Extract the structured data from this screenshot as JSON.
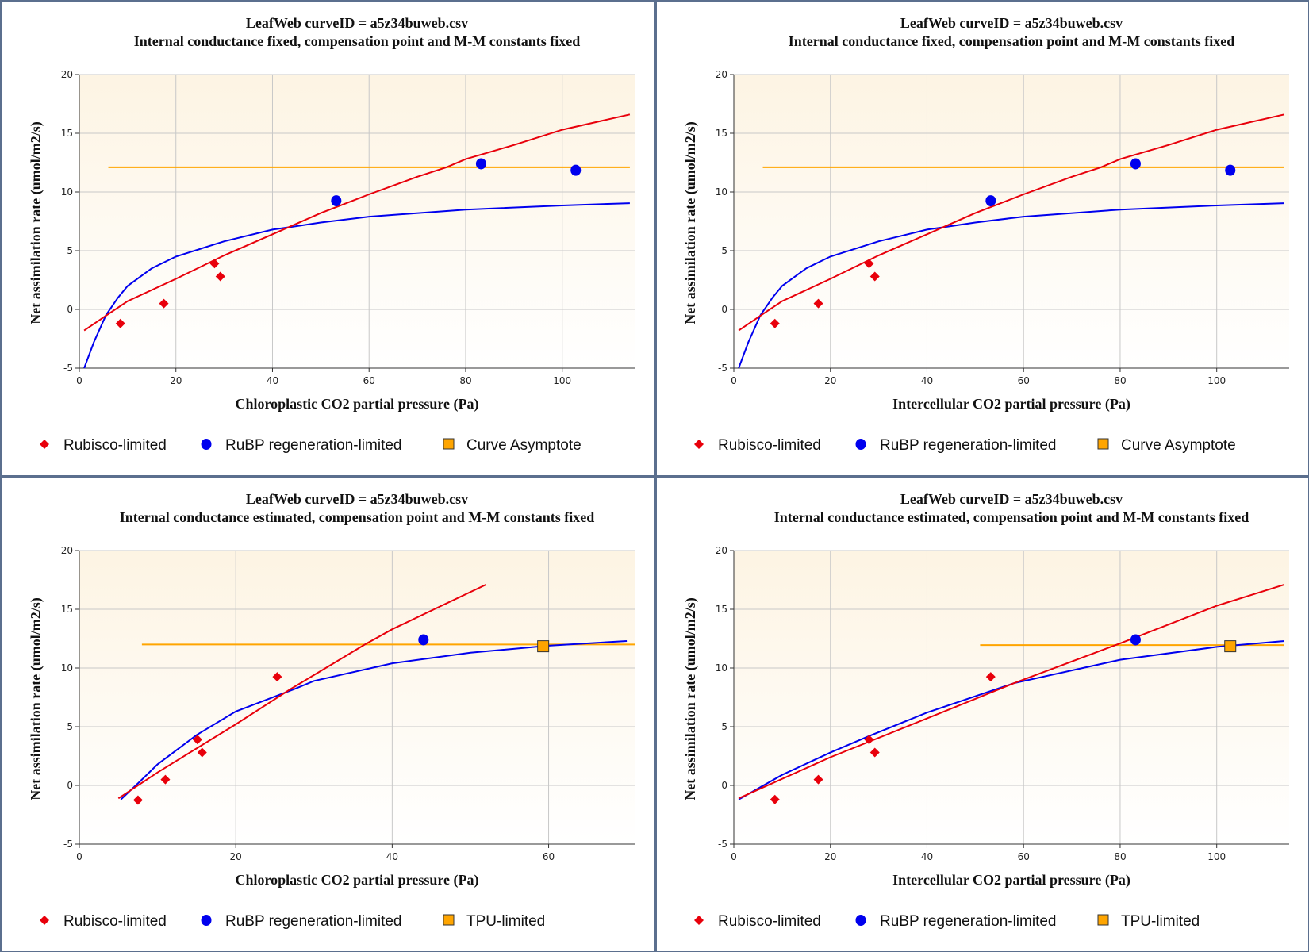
{
  "colors": {
    "rubisco": "#e8000b",
    "rubp": "#0000ee",
    "asymptote": "#ffa500",
    "grid": "#c8c8c8",
    "bg_top": "#fdf4e3",
    "frame": "#5b6f8e"
  },
  "chart_data": [
    {
      "type": "scatter",
      "title": "LeafWeb curveID = a5z34buweb.csv",
      "subtitle": "Internal conductance fixed, compensation point and M-M constants fixed",
      "xlabel": "Chloroplastic CO2 partial pressure (Pa)",
      "ylabel": "Net assimilation rate (umol/m2/s)",
      "xlim": [
        0,
        115
      ],
      "ylim": [
        -5,
        20
      ],
      "xticks": [
        0,
        20,
        40,
        60,
        80,
        100
      ],
      "yticks": [
        -5,
        0,
        5,
        10,
        15,
        20
      ],
      "grid": true,
      "legend": [
        "Rubisco-limited",
        "RuBP regeneration-limited",
        "Curve Asymptote"
      ],
      "rubisco_points": [
        [
          8.5,
          -1.2
        ],
        [
          17.5,
          0.5
        ],
        [
          28,
          3.9
        ],
        [
          29.2,
          2.8
        ]
      ],
      "rubp_points": [
        [
          53.2,
          9.25
        ],
        [
          83.2,
          12.4
        ],
        [
          102.8,
          11.85
        ]
      ],
      "tpu_points": [],
      "asymptote": {
        "y": 12.1,
        "x": [
          6,
          114
        ]
      },
      "rubisco_curve": [
        [
          1,
          -1.8
        ],
        [
          6,
          -0.4
        ],
        [
          10,
          0.7
        ],
        [
          20,
          2.6
        ],
        [
          30,
          4.6
        ],
        [
          40,
          6.4
        ],
        [
          50,
          8.2
        ],
        [
          60,
          9.8
        ],
        [
          70,
          11.3
        ],
        [
          76,
          12.1
        ],
        [
          80,
          12.8
        ],
        [
          90,
          14.0
        ],
        [
          100,
          15.3
        ],
        [
          114,
          16.6
        ]
      ],
      "rubp_curve": [
        [
          1,
          -5
        ],
        [
          3,
          -2.8
        ],
        [
          5.5,
          -0.5
        ],
        [
          8,
          1.0
        ],
        [
          10,
          2.0
        ],
        [
          15,
          3.5
        ],
        [
          20,
          4.5
        ],
        [
          30,
          5.8
        ],
        [
          40,
          6.8
        ],
        [
          43.5,
          7.0
        ],
        [
          50,
          7.4
        ],
        [
          60,
          7.9
        ],
        [
          80,
          8.5
        ],
        [
          100,
          8.85
        ],
        [
          114,
          9.05
        ]
      ]
    },
    {
      "type": "scatter",
      "title": "LeafWeb curveID = a5z34buweb.csv",
      "subtitle": "Internal conductance fixed, compensation point and M-M constants fixed",
      "xlabel": "Intercellular CO2 partial pressure (Pa)",
      "ylabel": "Net assimilation rate (umol/m2/s)",
      "xlim": [
        0,
        115
      ],
      "ylim": [
        -5,
        20
      ],
      "xticks": [
        0,
        20,
        40,
        60,
        80,
        100
      ],
      "yticks": [
        -5,
        0,
        5,
        10,
        15,
        20
      ],
      "grid": true,
      "legend": [
        "Rubisco-limited",
        "RuBP regeneration-limited",
        "Curve Asymptote"
      ],
      "rubisco_points": [
        [
          8.5,
          -1.2
        ],
        [
          17.5,
          0.5
        ],
        [
          28,
          3.9
        ],
        [
          29.2,
          2.8
        ]
      ],
      "rubp_points": [
        [
          53.2,
          9.25
        ],
        [
          83.2,
          12.4
        ],
        [
          102.8,
          11.85
        ]
      ],
      "tpu_points": [],
      "asymptote": {
        "y": 12.1,
        "x": [
          6,
          114
        ]
      },
      "rubisco_curve": [
        [
          1,
          -1.8
        ],
        [
          6,
          -0.4
        ],
        [
          10,
          0.7
        ],
        [
          20,
          2.6
        ],
        [
          30,
          4.6
        ],
        [
          40,
          6.4
        ],
        [
          50,
          8.2
        ],
        [
          60,
          9.8
        ],
        [
          70,
          11.3
        ],
        [
          76,
          12.1
        ],
        [
          80,
          12.8
        ],
        [
          90,
          14.0
        ],
        [
          100,
          15.3
        ],
        [
          114,
          16.6
        ]
      ],
      "rubp_curve": [
        [
          1,
          -5
        ],
        [
          3,
          -2.8
        ],
        [
          5.5,
          -0.5
        ],
        [
          8,
          1.0
        ],
        [
          10,
          2.0
        ],
        [
          15,
          3.5
        ],
        [
          20,
          4.5
        ],
        [
          30,
          5.8
        ],
        [
          40,
          6.8
        ],
        [
          43.5,
          7.0
        ],
        [
          50,
          7.4
        ],
        [
          60,
          7.9
        ],
        [
          80,
          8.5
        ],
        [
          100,
          8.85
        ],
        [
          114,
          9.05
        ]
      ]
    },
    {
      "type": "scatter",
      "title": "LeafWeb curveID = a5z34buweb.csv",
      "subtitle": "Internal conductance estimated, compensation point and M-M constants fixed",
      "xlabel": "Chloroplastic CO2 partial pressure (Pa)",
      "ylabel": "Net assimilation rate (umol/m2/s)",
      "xlim": [
        0,
        71
      ],
      "ylim": [
        -5,
        20
      ],
      "xticks": [
        0,
        20,
        40,
        60
      ],
      "yticks": [
        -5,
        0,
        5,
        10,
        15,
        20
      ],
      "grid": true,
      "legend": [
        "Rubisco-limited",
        "RuBP regeneration-limited",
        "TPU-limited"
      ],
      "rubisco_points": [
        [
          7.5,
          -1.25
        ],
        [
          11,
          0.5
        ],
        [
          15.1,
          3.9
        ],
        [
          15.7,
          2.8
        ],
        [
          25.3,
          9.25
        ]
      ],
      "rubp_points": [
        [
          44,
          12.4
        ]
      ],
      "tpu_points": [
        [
          59.3,
          11.85
        ]
      ],
      "asymptote": {
        "y": 12.0,
        "x": [
          8,
          71
        ]
      },
      "rubisco_curve": [
        [
          5,
          -1.1
        ],
        [
          10,
          1.1
        ],
        [
          20,
          5.2
        ],
        [
          27,
          8.2
        ],
        [
          30,
          9.4
        ],
        [
          36.5,
          12
        ],
        [
          40,
          13.3
        ],
        [
          46,
          15.2
        ],
        [
          52,
          17.1
        ]
      ],
      "rubp_curve": [
        [
          5.3,
          -1.2
        ],
        [
          8,
          0.5
        ],
        [
          10,
          1.8
        ],
        [
          15,
          4.3
        ],
        [
          20,
          6.3
        ],
        [
          27.5,
          8.2
        ],
        [
          30,
          8.9
        ],
        [
          40,
          10.4
        ],
        [
          50,
          11.3
        ],
        [
          60,
          11.9
        ],
        [
          70,
          12.3
        ]
      ]
    },
    {
      "type": "scatter",
      "title": "LeafWeb curveID = a5z34buweb.csv",
      "subtitle": "Internal conductance estimated, compensation point and M-M constants fixed",
      "xlabel": "Intercellular CO2 partial pressure (Pa)",
      "ylabel": "Net assimilation rate (umol/m2/s)",
      "xlim": [
        0,
        115
      ],
      "ylim": [
        -5,
        20
      ],
      "xticks": [
        0,
        20,
        40,
        60,
        80,
        100
      ],
      "yticks": [
        -5,
        0,
        5,
        10,
        15,
        20
      ],
      "grid": true,
      "legend": [
        "Rubisco-limited",
        "RuBP regeneration-limited",
        "TPU-limited"
      ],
      "rubisco_points": [
        [
          8.5,
          -1.2
        ],
        [
          17.5,
          0.5
        ],
        [
          28,
          3.9
        ],
        [
          29.2,
          2.8
        ],
        [
          53.2,
          9.25
        ]
      ],
      "rubp_points": [
        [
          83.2,
          12.4
        ]
      ],
      "tpu_points": [
        [
          102.8,
          11.85
        ]
      ],
      "asymptote": {
        "y": 11.95,
        "x": [
          51,
          114
        ]
      },
      "rubisco_curve": [
        [
          1,
          -1.1
        ],
        [
          20,
          2.4
        ],
        [
          40,
          5.7
        ],
        [
          58,
          8.7
        ],
        [
          80,
          12.1
        ],
        [
          100,
          15.3
        ],
        [
          114,
          17.1
        ]
      ],
      "rubp_curve": [
        [
          1,
          -1.2
        ],
        [
          10,
          0.9
        ],
        [
          20,
          2.8
        ],
        [
          28,
          4.2
        ],
        [
          40,
          6.2
        ],
        [
          58,
          8.7
        ],
        [
          80,
          10.7
        ],
        [
          100,
          11.8
        ],
        [
          114,
          12.3
        ]
      ]
    }
  ]
}
